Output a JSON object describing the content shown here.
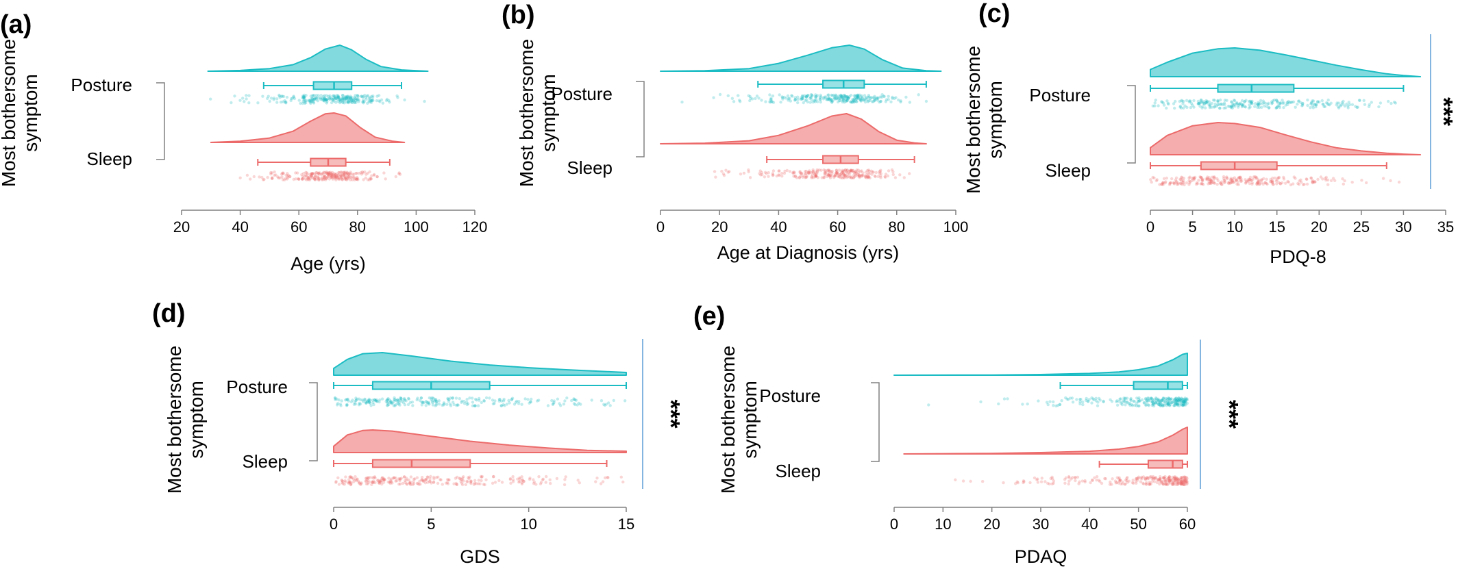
{
  "colors": {
    "posture": "#1bbcc3",
    "sleep": "#ec6a6a",
    "axis": "#808080",
    "sig_line": "#5b9bd5"
  },
  "chart_data": [
    {
      "type": "raincloud",
      "panel_label": "(a)",
      "ylabel": "Most bothersome symptom",
      "xlabel": "Age (yrs)",
      "xlim": [
        20,
        120
      ],
      "xticks": [
        20,
        40,
        60,
        80,
        100,
        120
      ],
      "significance": "",
      "series": [
        {
          "name": "Posture",
          "whisker_low": 48,
          "q1": 65,
          "median": 72,
          "q3": 78,
          "whisker_high": 95,
          "density": [
            [
              29,
              0
            ],
            [
              40,
              0.03
            ],
            [
              50,
              0.1
            ],
            [
              58,
              0.25
            ],
            [
              64,
              0.52
            ],
            [
              69,
              0.85
            ],
            [
              74,
              1.0
            ],
            [
              78,
              0.82
            ],
            [
              83,
              0.45
            ],
            [
              88,
              0.18
            ],
            [
              95,
              0.05
            ],
            [
              104,
              0
            ]
          ]
        },
        {
          "name": "Sleep",
          "whisker_low": 46,
          "q1": 64,
          "median": 70,
          "q3": 76,
          "whisker_high": 91,
          "density": [
            [
              30,
              0
            ],
            [
              40,
              0.04
            ],
            [
              50,
              0.15
            ],
            [
              58,
              0.38
            ],
            [
              64,
              0.72
            ],
            [
              69,
              0.97
            ],
            [
              72,
              1.0
            ],
            [
              76,
              0.9
            ],
            [
              81,
              0.5
            ],
            [
              86,
              0.18
            ],
            [
              92,
              0.04
            ],
            [
              96,
              0
            ]
          ]
        }
      ]
    },
    {
      "type": "raincloud",
      "panel_label": "(b)",
      "ylabel": "Most bothersome symptom",
      "xlabel": "Age at Diagnosis (yrs)",
      "xlim": [
        0,
        100
      ],
      "xticks": [
        0,
        20,
        40,
        60,
        80,
        100
      ],
      "significance": "",
      "series": [
        {
          "name": "Posture",
          "whisker_low": 33,
          "q1": 55,
          "median": 62,
          "q3": 69,
          "whisker_high": 90,
          "density": [
            [
              0,
              0
            ],
            [
              15,
              0.02
            ],
            [
              30,
              0.1
            ],
            [
              40,
              0.3
            ],
            [
              50,
              0.62
            ],
            [
              58,
              0.9
            ],
            [
              64,
              1.0
            ],
            [
              69,
              0.85
            ],
            [
              75,
              0.45
            ],
            [
              82,
              0.12
            ],
            [
              90,
              0.02
            ],
            [
              95,
              0
            ]
          ]
        },
        {
          "name": "Sleep",
          "whisker_low": 36,
          "q1": 55,
          "median": 61,
          "q3": 67,
          "whisker_high": 86,
          "density": [
            [
              0,
              0
            ],
            [
              15,
              0.02
            ],
            [
              30,
              0.1
            ],
            [
              40,
              0.28
            ],
            [
              50,
              0.6
            ],
            [
              58,
              0.92
            ],
            [
              63,
              1.0
            ],
            [
              68,
              0.82
            ],
            [
              74,
              0.4
            ],
            [
              80,
              0.12
            ],
            [
              86,
              0.03
            ],
            [
              90,
              0
            ]
          ]
        }
      ]
    },
    {
      "type": "raincloud",
      "panel_label": "(c)",
      "ylabel": "Most bothersome symptom",
      "xlabel": "PDQ-8",
      "xlim": [
        0,
        35
      ],
      "xticks": [
        0,
        5,
        10,
        15,
        20,
        25,
        30,
        35
      ],
      "significance": "***",
      "series": [
        {
          "name": "Posture",
          "whisker_low": 0,
          "q1": 8,
          "median": 12,
          "q3": 17,
          "whisker_high": 30,
          "density": [
            [
              0,
              0.25
            ],
            [
              2,
              0.5
            ],
            [
              5,
              0.82
            ],
            [
              8,
              0.97
            ],
            [
              10,
              1.0
            ],
            [
              13,
              0.92
            ],
            [
              16,
              0.76
            ],
            [
              19,
              0.58
            ],
            [
              22,
              0.4
            ],
            [
              25,
              0.24
            ],
            [
              28,
              0.1
            ],
            [
              30,
              0.04
            ],
            [
              32,
              0
            ]
          ]
        },
        {
          "name": "Sleep",
          "whisker_low": 0,
          "q1": 6,
          "median": 10,
          "q3": 15,
          "whisker_high": 28,
          "density": [
            [
              0,
              0.22
            ],
            [
              2,
              0.6
            ],
            [
              5,
              0.9
            ],
            [
              8,
              1.0
            ],
            [
              10,
              0.97
            ],
            [
              13,
              0.85
            ],
            [
              16,
              0.62
            ],
            [
              19,
              0.4
            ],
            [
              22,
              0.22
            ],
            [
              25,
              0.12
            ],
            [
              28,
              0.05
            ],
            [
              30,
              0.02
            ],
            [
              32,
              0
            ]
          ]
        }
      ]
    },
    {
      "type": "raincloud",
      "panel_label": "(d)",
      "ylabel": "Most bothersome symptom",
      "xlabel": "GDS",
      "xlim": [
        0,
        15
      ],
      "xticks": [
        0,
        5,
        10,
        15
      ],
      "significance": "***",
      "series": [
        {
          "name": "Posture",
          "whisker_low": 0,
          "q1": 2,
          "median": 5,
          "q3": 8,
          "whisker_high": 15,
          "density": [
            [
              0,
              0.3
            ],
            [
              0.7,
              0.7
            ],
            [
              1.5,
              0.95
            ],
            [
              2.5,
              1.0
            ],
            [
              4,
              0.85
            ],
            [
              6,
              0.62
            ],
            [
              8,
              0.45
            ],
            [
              10,
              0.33
            ],
            [
              12,
              0.24
            ],
            [
              14,
              0.16
            ],
            [
              15,
              0.12
            ]
          ]
        },
        {
          "name": "Sleep",
          "whisker_low": 0,
          "q1": 2,
          "median": 4,
          "q3": 7,
          "whisker_high": 14,
          "density": [
            [
              0,
              0.28
            ],
            [
              0.7,
              0.78
            ],
            [
              1.5,
              0.98
            ],
            [
              2,
              1.0
            ],
            [
              3,
              0.95
            ],
            [
              5,
              0.72
            ],
            [
              7,
              0.5
            ],
            [
              9,
              0.33
            ],
            [
              11,
              0.2
            ],
            [
              13,
              0.1
            ],
            [
              15,
              0.06
            ]
          ]
        }
      ]
    },
    {
      "type": "raincloud",
      "panel_label": "(e)",
      "ylabel": "Most bothersome symptom",
      "xlabel": "PDAQ",
      "xlim": [
        0,
        60
      ],
      "xticks": [
        0,
        10,
        20,
        30,
        40,
        50,
        60
      ],
      "significance": "***",
      "series": [
        {
          "name": "Posture",
          "whisker_low": 34,
          "q1": 49,
          "median": 56,
          "q3": 59,
          "whisker_high": 60,
          "density": [
            [
              0,
              0
            ],
            [
              20,
              0.01
            ],
            [
              30,
              0.03
            ],
            [
              40,
              0.08
            ],
            [
              46,
              0.15
            ],
            [
              50,
              0.25
            ],
            [
              54,
              0.42
            ],
            [
              57,
              0.7
            ],
            [
              59,
              0.95
            ],
            [
              60,
              1.0
            ]
          ]
        },
        {
          "name": "Sleep",
          "whisker_low": 42,
          "q1": 52,
          "median": 57,
          "q3": 59,
          "whisker_high": 60,
          "density": [
            [
              2,
              0
            ],
            [
              20,
              0.02
            ],
            [
              30,
              0.05
            ],
            [
              40,
              0.1
            ],
            [
              46,
              0.18
            ],
            [
              50,
              0.28
            ],
            [
              54,
              0.45
            ],
            [
              57,
              0.7
            ],
            [
              59,
              0.92
            ],
            [
              60,
              1.0
            ]
          ]
        }
      ]
    }
  ]
}
